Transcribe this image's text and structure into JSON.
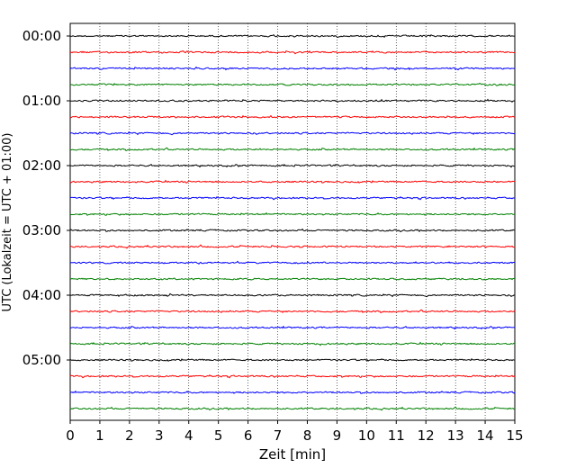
{
  "chart_data": {
    "type": "line",
    "title": "",
    "xlabel": "Zeit  [min]",
    "ylabel": "UTC (Lokalzeit = UTC + 01:00)",
    "xlim": [
      0,
      15
    ],
    "x_ticks": [
      "0",
      "1",
      "2",
      "3",
      "4",
      "5",
      "6",
      "7",
      "8",
      "9",
      "10",
      "11",
      "12",
      "13",
      "14",
      "15"
    ],
    "y_ticks": [
      "00:00",
      "01:00",
      "02:00",
      "03:00",
      "04:00",
      "05:00"
    ],
    "trace_minutes": 15,
    "grid": "vertical dotted lines at each minute",
    "colors": [
      "#000000",
      "#ff0000",
      "#0000ff",
      "#008000"
    ],
    "series": [
      {
        "start": "00:00",
        "color": "#000000"
      },
      {
        "start": "00:15",
        "color": "#ff0000"
      },
      {
        "start": "00:30",
        "color": "#0000ff"
      },
      {
        "start": "00:45",
        "color": "#008000"
      },
      {
        "start": "01:00",
        "color": "#000000"
      },
      {
        "start": "01:15",
        "color": "#ff0000"
      },
      {
        "start": "01:30",
        "color": "#0000ff"
      },
      {
        "start": "01:45",
        "color": "#008000"
      },
      {
        "start": "02:00",
        "color": "#000000"
      },
      {
        "start": "02:15",
        "color": "#ff0000"
      },
      {
        "start": "02:30",
        "color": "#0000ff"
      },
      {
        "start": "02:45",
        "color": "#008000"
      },
      {
        "start": "03:00",
        "color": "#000000"
      },
      {
        "start": "03:15",
        "color": "#ff0000"
      },
      {
        "start": "03:30",
        "color": "#0000ff"
      },
      {
        "start": "03:45",
        "color": "#008000"
      },
      {
        "start": "04:00",
        "color": "#000000"
      },
      {
        "start": "04:15",
        "color": "#ff0000"
      },
      {
        "start": "04:30",
        "color": "#0000ff"
      },
      {
        "start": "04:45",
        "color": "#008000"
      },
      {
        "start": "05:00",
        "color": "#000000"
      },
      {
        "start": "05:15",
        "color": "#ff0000"
      },
      {
        "start": "05:30",
        "color": "#0000ff"
      },
      {
        "start": "05:45",
        "color": "#008000"
      }
    ]
  }
}
